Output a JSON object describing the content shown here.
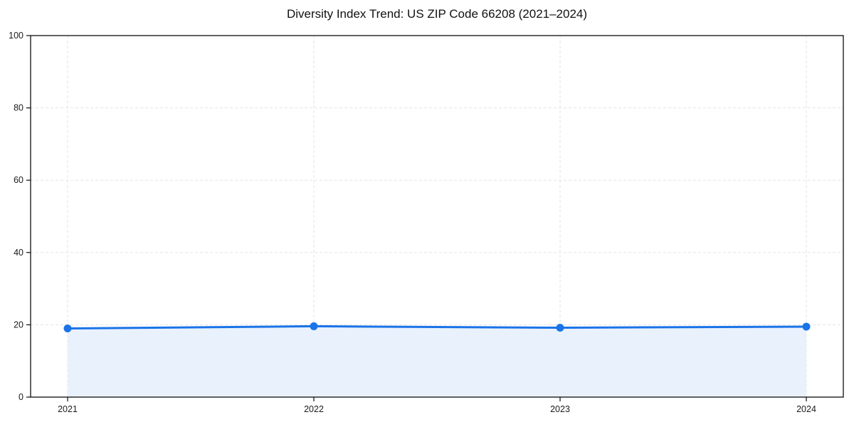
{
  "chart_data": {
    "type": "line",
    "title": "Diversity Index Trend: US ZIP Code 66208 (2021–2024)",
    "categories": [
      "2021",
      "2022",
      "2023",
      "2024"
    ],
    "values": [
      19.0,
      19.6,
      19.2,
      19.5
    ],
    "xlabel": "",
    "ylabel": "",
    "ylim": [
      0,
      100
    ],
    "yticks": [
      0,
      20,
      40,
      60,
      80,
      100
    ],
    "grid": "dashed",
    "legend": "none",
    "area_fill": true,
    "marker": "circle",
    "colors": {
      "line": "#1a73e8",
      "marker": "#1a73e8",
      "area_fill": "#e8f1fc",
      "gridline": "#e3e3e3",
      "spine": "#0d0d0d",
      "tick_label": "#1a1a1a",
      "title": "#111111",
      "background": "#ffffff"
    }
  }
}
